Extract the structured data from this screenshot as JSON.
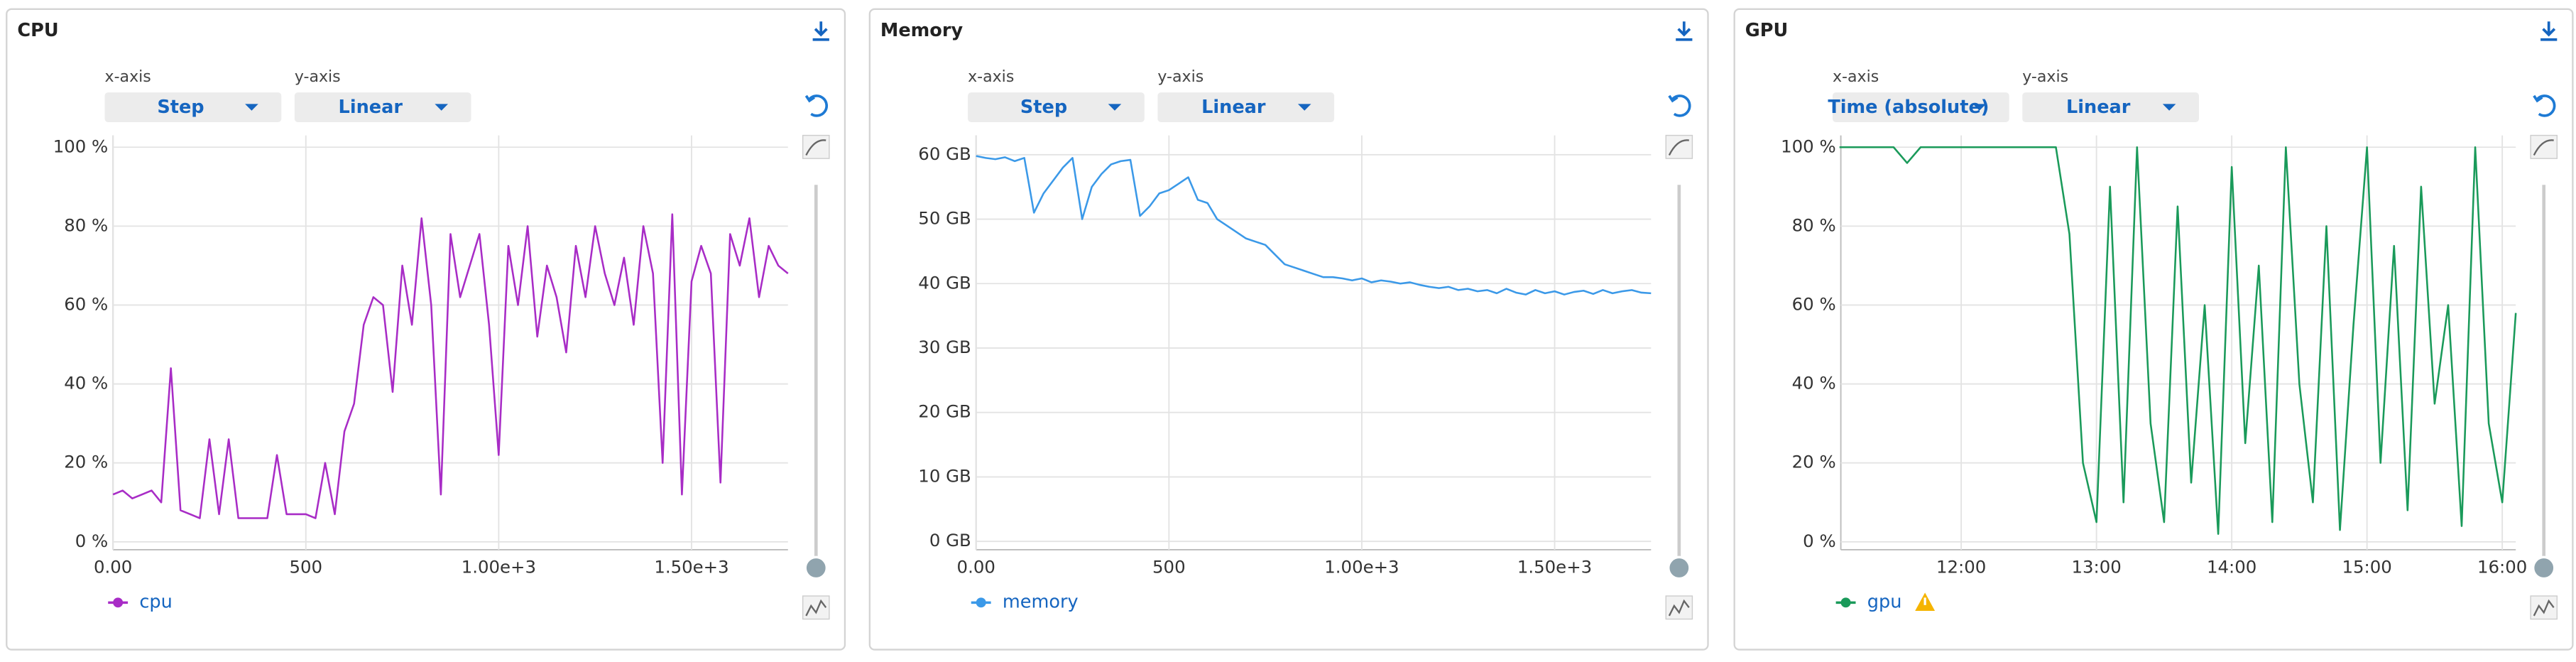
{
  "panels": [
    {
      "x_axis_label": "x-axis",
      "x_axis_value": "Step",
      "y_axis_label": "y-axis",
      "y_axis_value": "Linear"
    },
    {
      "x_axis_label": "x-axis",
      "x_axis_value": "Step",
      "y_axis_label": "y-axis",
      "y_axis_value": "Linear"
    },
    {
      "x_axis_label": "x-axis",
      "x_axis_value": "Time (absolute)",
      "y_axis_label": "y-axis",
      "y_axis_value": "Linear"
    }
  ],
  "chart_data": [
    {
      "type": "line",
      "title": "CPU",
      "x": [
        0,
        25,
        50,
        75,
        100,
        125,
        150,
        175,
        200,
        225,
        250,
        275,
        300,
        325,
        350,
        375,
        400,
        425,
        450,
        475,
        500,
        525,
        550,
        575,
        600,
        625,
        650,
        675,
        700,
        725,
        750,
        775,
        800,
        825,
        850,
        875,
        900,
        925,
        950,
        975,
        1000,
        1025,
        1050,
        1075,
        1100,
        1125,
        1150,
        1175,
        1200,
        1225,
        1250,
        1275,
        1300,
        1325,
        1350,
        1375,
        1400,
        1425,
        1450,
        1475,
        1500,
        1525,
        1550,
        1575,
        1600,
        1625,
        1650,
        1675,
        1700,
        1725,
        1750
      ],
      "series": [
        {
          "name": "cpu",
          "color": "#a82cc6",
          "values": [
            12,
            13,
            11,
            12,
            13,
            10,
            44,
            8,
            7,
            6,
            26,
            7,
            26,
            6,
            6,
            6,
            6,
            22,
            7,
            7,
            7,
            6,
            20,
            7,
            28,
            35,
            55,
            62,
            60,
            38,
            70,
            55,
            82,
            60,
            12,
            78,
            62,
            70,
            78,
            55,
            22,
            75,
            60,
            80,
            52,
            70,
            62,
            48,
            75,
            62,
            80,
            68,
            60,
            72,
            55,
            80,
            68,
            20,
            83,
            12,
            66,
            75,
            68,
            15,
            78,
            70,
            82,
            62,
            75,
            70,
            68
          ]
        }
      ],
      "xlim": [
        0,
        1750
      ],
      "ylim": [
        -2,
        103
      ],
      "xticks": [
        {
          "value": 0,
          "label": "0.00"
        },
        500,
        {
          "value": 1000,
          "label": "1.00e+3"
        },
        {
          "value": 1500,
          "label": "1.50e+3"
        }
      ],
      "yticks": [
        {
          "value": 0,
          "label": "0 %"
        },
        {
          "value": 20,
          "label": "20 %"
        },
        {
          "value": 40,
          "label": "40 %"
        },
        {
          "value": 60,
          "label": "60 %"
        },
        {
          "value": 80,
          "label": "80 %"
        },
        {
          "value": 100,
          "label": "100 %"
        }
      ],
      "grid": true
    },
    {
      "type": "line",
      "title": "Memory",
      "x": [
        0,
        25,
        50,
        75,
        100,
        125,
        150,
        175,
        200,
        225,
        250,
        275,
        300,
        325,
        350,
        375,
        400,
        425,
        450,
        475,
        500,
        525,
        550,
        575,
        600,
        625,
        650,
        675,
        700,
        725,
        750,
        775,
        800,
        825,
        850,
        875,
        900,
        925,
        950,
        975,
        1000,
        1025,
        1050,
        1075,
        1100,
        1125,
        1150,
        1175,
        1200,
        1225,
        1250,
        1275,
        1300,
        1325,
        1350,
        1375,
        1400,
        1425,
        1450,
        1475,
        1500,
        1525,
        1550,
        1575,
        1600,
        1625,
        1650,
        1675,
        1700,
        1725,
        1750
      ],
      "series": [
        {
          "name": "memory",
          "color": "#3b99e8",
          "values": [
            59.8,
            59.5,
            59.3,
            59.6,
            59,
            59.5,
            51,
            54,
            56,
            58,
            59.5,
            50,
            55,
            57,
            58.5,
            59,
            59.2,
            50.5,
            52,
            54,
            54.5,
            55.5,
            56.5,
            53,
            52.5,
            50,
            49,
            48,
            47,
            46.5,
            46,
            44.5,
            43,
            42.5,
            42,
            41.5,
            41,
            41,
            40.8,
            40.5,
            40.8,
            40.2,
            40.5,
            40.3,
            40,
            40.2,
            39.8,
            39.5,
            39.3,
            39.5,
            39,
            39.2,
            38.8,
            39,
            38.5,
            39.2,
            38.6,
            38.3,
            39,
            38.5,
            38.8,
            38.3,
            38.7,
            38.9,
            38.4,
            39,
            38.5,
            38.8,
            39,
            38.6,
            38.5
          ]
        }
      ],
      "xlim": [
        0,
        1750
      ],
      "ylim": [
        -1.3,
        63
      ],
      "xticks": [
        {
          "value": 0,
          "label": "0.00"
        },
        500,
        {
          "value": 1000,
          "label": "1.00e+3"
        },
        {
          "value": 1500,
          "label": "1.50e+3"
        }
      ],
      "yticks": [
        {
          "value": 0,
          "label": "0 GB"
        },
        {
          "value": 10,
          "label": "10 GB"
        },
        {
          "value": 20,
          "label": "20 GB"
        },
        {
          "value": 30,
          "label": "30 GB"
        },
        {
          "value": 40,
          "label": "40 GB"
        },
        {
          "value": 50,
          "label": "50 GB"
        },
        {
          "value": 60,
          "label": "60 GB"
        }
      ],
      "grid": true
    },
    {
      "type": "line",
      "title": "GPU",
      "x": [
        11.1,
        11.2,
        11.3,
        11.4,
        11.5,
        11.6,
        11.7,
        11.8,
        11.9,
        12.0,
        12.1,
        12.2,
        12.3,
        12.4,
        12.5,
        12.6,
        12.7,
        12.8,
        12.9,
        13.0,
        13.1,
        13.2,
        13.3,
        13.4,
        13.5,
        13.6,
        13.7,
        13.8,
        13.9,
        14.0,
        14.1,
        14.2,
        14.3,
        14.4,
        14.5,
        14.6,
        14.7,
        14.8,
        14.9,
        15.0,
        15.1,
        15.2,
        15.3,
        15.4,
        15.5,
        15.6,
        15.7,
        15.8,
        15.9,
        16.0,
        16.1
      ],
      "series": [
        {
          "name": "gpu",
          "color": "#1a9a5a",
          "values": [
            100,
            100,
            100,
            100,
            100,
            96,
            100,
            100,
            100,
            100,
            100,
            100,
            100,
            100,
            100,
            100,
            100,
            78,
            20,
            5,
            90,
            10,
            100,
            30,
            5,
            85,
            15,
            60,
            2,
            95,
            25,
            70,
            5,
            100,
            40,
            10,
            80,
            3,
            55,
            100,
            20,
            75,
            8,
            90,
            35,
            60,
            4,
            100,
            30,
            10,
            58
          ]
        }
      ],
      "xlim": [
        11.11,
        16.1
      ],
      "ylim": [
        -2,
        103
      ],
      "xticks": [
        {
          "value": 12,
          "label": "12:00"
        },
        {
          "value": 13,
          "label": "13:00"
        },
        {
          "value": 14,
          "label": "14:00"
        },
        {
          "value": 15,
          "label": "15:00"
        },
        {
          "value": 16,
          "label": "16:00"
        }
      ],
      "yticks": [
        {
          "value": 0,
          "label": "0 %"
        },
        {
          "value": 20,
          "label": "20 %"
        },
        {
          "value": 40,
          "label": "40 %"
        },
        {
          "value": 60,
          "label": "60 %"
        },
        {
          "value": 80,
          "label": "80 %"
        },
        {
          "value": 100,
          "label": "100 %"
        }
      ],
      "grid": true
    }
  ]
}
